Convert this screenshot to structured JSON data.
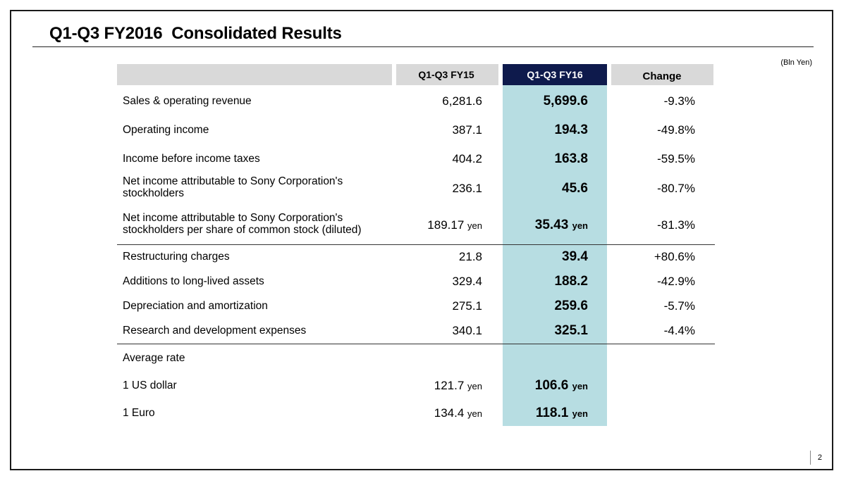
{
  "slide": {
    "title": "Q1-Q3 FY2016  Consolidated Results",
    "unit_note": "(Bln Yen)",
    "page_number": "2"
  },
  "table": {
    "headers": {
      "fy15": "Q1-Q3 FY15",
      "fy16": "Q1-Q3 FY16",
      "change": "Change"
    },
    "rows": [
      {
        "label": "Sales & operating revenue",
        "fy15": "6,281.6",
        "fy16": "5,699.6",
        "change": "-9.3%"
      },
      {
        "label": "Operating income",
        "fy15": "387.1",
        "fy16": "194.3",
        "change": "-49.8%"
      },
      {
        "label": "Income before income taxes",
        "fy15": "404.2",
        "fy16": "163.8",
        "change": "-59.5%"
      },
      {
        "label": "Net income attributable to Sony Corporation's stockholders",
        "fy15": "236.1",
        "fy16": "45.6",
        "change": "-80.7%"
      },
      {
        "label": "Net income attributable to Sony Corporation's stockholders per share of common stock (diluted)",
        "fy15": "189.17",
        "fy15_unit": "yen",
        "fy16": "35.43",
        "fy16_unit": "yen",
        "change": "-81.3%"
      },
      {
        "label": "Restructuring charges",
        "fy15": "21.8",
        "fy16": "39.4",
        "change": "+80.6%"
      },
      {
        "label": "Additions to long-lived assets",
        "fy15": "329.4",
        "fy16": "188.2",
        "change": "-42.9%"
      },
      {
        "label": "Depreciation and amortization",
        "fy15": "275.1",
        "fy16": "259.6",
        "change": "-5.7%"
      },
      {
        "label": "Research and development expenses",
        "fy15": "340.1",
        "fy16": "325.1",
        "change": "-4.4%"
      }
    ],
    "rates": {
      "section_label": "Average rate",
      "usd": {
        "label": "1 US dollar",
        "fy15": "121.7",
        "fy15_unit": "yen",
        "fy16": "106.6",
        "fy16_unit": "yen"
      },
      "eur": {
        "label": "1 Euro",
        "fy15": "134.4",
        "fy15_unit": "yen",
        "fy16": "118.1",
        "fy16_unit": "yen"
      }
    }
  },
  "colors": {
    "header_band": "#d9d9d9",
    "highlight_column": "#b7dde2",
    "highlight_header": "#0e1a4c"
  }
}
